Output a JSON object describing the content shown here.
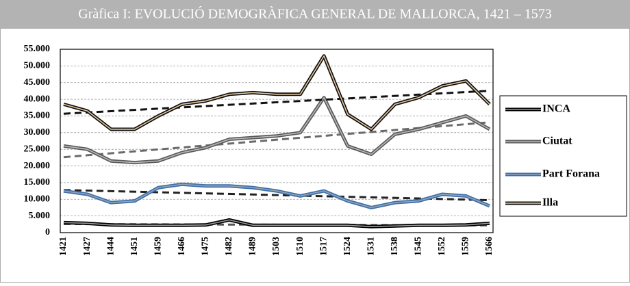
{
  "chart_data": {
    "type": "line",
    "title": "Gràfica I:  EVOLUCIÓ DEMOGRÀFICA GENERAL DE MALLORCA, 1421 – 1573",
    "categories": [
      "1421",
      "1427",
      "1444",
      "1451",
      "1459",
      "1466",
      "1475",
      "1482",
      "1489",
      "1503",
      "1510",
      "1517",
      "1524",
      "1531",
      "1538",
      "1545",
      "1552",
      "1559",
      "1566"
    ],
    "series": [
      {
        "name": "INCA",
        "color": "#000000",
        "inner_color": "#9a9a9a",
        "trend_color": "#555555",
        "values": [
          3000,
          2800,
          2300,
          2200,
          2200,
          2200,
          2300,
          3800,
          2200,
          2200,
          2200,
          2200,
          2200,
          1800,
          2000,
          2200,
          2200,
          2300,
          2800
        ]
      },
      {
        "name": "Ciutat",
        "color": "#5a5a5a",
        "inner_color": "#b8b8b8",
        "trend_color": "#6a6a6a",
        "values": [
          26000,
          25000,
          21500,
          21000,
          21500,
          24000,
          25500,
          28000,
          28500,
          29000,
          30000,
          40500,
          26000,
          23500,
          29500,
          31000,
          33000,
          35000,
          31000
        ]
      },
      {
        "name": "Part Forana",
        "color": "#3f6fa8",
        "inner_color": "#8fa4ba",
        "trend_color": "#222222",
        "values": [
          12500,
          11500,
          9000,
          9500,
          13500,
          14500,
          14000,
          14000,
          13500,
          12500,
          11000,
          12500,
          9500,
          7500,
          9000,
          9500,
          11500,
          11000,
          8000
        ]
      },
      {
        "name": "Illa",
        "color": "#111111",
        "inner_color": "#e6c79c",
        "trend_color": "#111111",
        "values": [
          38500,
          36500,
          31000,
          31000,
          35000,
          38500,
          39500,
          41500,
          42000,
          41500,
          41500,
          53000,
          35500,
          31000,
          38500,
          40500,
          44000,
          45500,
          38500
        ]
      }
    ],
    "ylim": [
      0,
      55000
    ],
    "yticks": [
      0,
      {
        "value": 5000,
        "label": "5.000"
      },
      {
        "value": 10000,
        "label": "10.000"
      },
      {
        "value": 15000,
        "label": "15.000"
      },
      {
        "value": 20000,
        "label": "20.000"
      },
      {
        "value": 25000,
        "label": "25.000"
      },
      {
        "value": 30000,
        "label": "30.000"
      },
      {
        "value": 35000,
        "label": "35.000"
      },
      {
        "value": 40000,
        "label": "40.000"
      },
      {
        "value": 45000,
        "label": "45.000"
      },
      {
        "value": 50000,
        "label": "50.000"
      },
      {
        "value": 55000,
        "label": "55.000"
      }
    ],
    "grid": true,
    "trendline": true,
    "legend": "right"
  }
}
